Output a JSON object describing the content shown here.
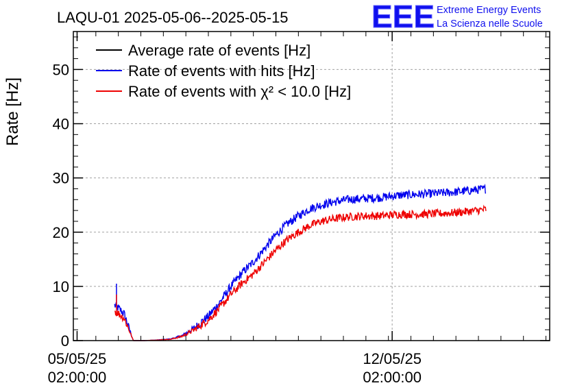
{
  "chart_data": {
    "type": "line",
    "title": "LAQU-01 2025-05-06--2025-05-15",
    "ylabel": "Rate [Hz]",
    "xlabel": "",
    "ylim": [
      0,
      57
    ],
    "yticks": [
      0,
      10,
      20,
      30,
      40,
      50
    ],
    "xlim": [
      "2025-05-05 00:00:00",
      "2025-05-15 14:00:00"
    ],
    "xticks": [
      {
        "x": "2025-05-05 02:00:00",
        "date": "05/05/25",
        "time": "02:00:00"
      },
      {
        "x": "2025-05-12 02:00:00",
        "date": "12/05/25",
        "time": "02:00:00"
      }
    ],
    "grid": true,
    "legend_position": "top-left",
    "logo": {
      "mark": "EEE",
      "line1": "Extreme Energy Events",
      "line2": "La Scienza nelle Scuole"
    },
    "series": [
      {
        "name": "Average rate of events [Hz]",
        "color": "#000000",
        "noise": 0,
        "points": []
      },
      {
        "name": "Rate of events with hits [Hz]",
        "color": "#0000ee",
        "noise": 0.8,
        "points": [
          [
            "2025-05-05 22:00",
            6.5
          ],
          [
            "2025-05-06 00:00",
            6.0
          ],
          [
            "2025-05-06 03:00",
            5.0
          ],
          [
            "2025-05-06 05:00",
            3.0
          ],
          [
            "2025-05-06 08:00",
            0.0
          ],
          [
            "2025-05-06 14:00",
            0.0
          ],
          [
            "2025-05-06 20:00",
            0.1
          ],
          [
            "2025-05-07 04:00",
            0.3
          ],
          [
            "2025-05-07 10:00",
            0.9
          ],
          [
            "2025-05-07 16:00",
            2.2
          ],
          [
            "2025-05-08 00:00",
            4.5
          ],
          [
            "2025-05-08 06:00",
            7.0
          ],
          [
            "2025-05-08 12:00",
            10.0
          ],
          [
            "2025-05-08 18:00",
            12.5
          ],
          [
            "2025-05-09 00:00",
            14.5
          ],
          [
            "2025-05-09 06:00",
            17.0
          ],
          [
            "2025-05-09 12:00",
            19.5
          ],
          [
            "2025-05-09 18:00",
            21.5
          ],
          [
            "2025-05-10 00:00",
            23.0
          ],
          [
            "2025-05-10 06:00",
            24.3
          ],
          [
            "2025-05-10 12:00",
            25.0
          ],
          [
            "2025-05-10 18:00",
            25.5
          ],
          [
            "2025-05-11 02:00",
            26.0
          ],
          [
            "2025-05-11 12:00",
            26.2
          ],
          [
            "2025-05-11 20:00",
            26.4
          ],
          [
            "2025-05-12 06:00",
            26.8
          ],
          [
            "2025-05-12 18:00",
            27.0
          ],
          [
            "2025-05-13 08:00",
            27.3
          ],
          [
            "2025-05-13 18:00",
            27.6
          ],
          [
            "2025-05-14 04:00",
            28.0
          ]
        ],
        "spikes": [
          [
            "2025-05-05 23:00",
            10.5
          ]
        ]
      },
      {
        "name": "Rate of events with χ² < 10.0 [Hz]",
        "color": "#ee0000",
        "noise": 0.75,
        "points": [
          [
            "2025-05-05 22:00",
            5.5
          ],
          [
            "2025-05-06 00:00",
            5.0
          ],
          [
            "2025-05-06 03:00",
            4.2
          ],
          [
            "2025-05-06 05:00",
            2.6
          ],
          [
            "2025-05-06 08:00",
            0.0
          ],
          [
            "2025-05-06 14:00",
            0.0
          ],
          [
            "2025-05-06 20:00",
            0.1
          ],
          [
            "2025-05-07 04:00",
            0.25
          ],
          [
            "2025-05-07 10:00",
            0.8
          ],
          [
            "2025-05-07 16:00",
            1.9
          ],
          [
            "2025-05-08 00:00",
            3.8
          ],
          [
            "2025-05-08 06:00",
            6.0
          ],
          [
            "2025-05-08 12:00",
            8.5
          ],
          [
            "2025-05-08 18:00",
            10.6
          ],
          [
            "2025-05-09 00:00",
            12.3
          ],
          [
            "2025-05-09 06:00",
            14.5
          ],
          [
            "2025-05-09 12:00",
            16.7
          ],
          [
            "2025-05-09 18:00",
            18.6
          ],
          [
            "2025-05-10 00:00",
            20.0
          ],
          [
            "2025-05-10 06:00",
            21.2
          ],
          [
            "2025-05-10 12:00",
            22.0
          ],
          [
            "2025-05-10 18:00",
            22.4
          ],
          [
            "2025-05-11 02:00",
            22.8
          ],
          [
            "2025-05-11 12:00",
            23.0
          ],
          [
            "2025-05-11 20:00",
            23.0
          ],
          [
            "2025-05-12 06:00",
            23.3
          ],
          [
            "2025-05-12 18:00",
            23.3
          ],
          [
            "2025-05-13 08:00",
            23.5
          ],
          [
            "2025-05-13 18:00",
            23.8
          ],
          [
            "2025-05-14 04:00",
            24.2
          ]
        ],
        "spikes": [
          [
            "2025-05-05 23:00",
            8.5
          ]
        ]
      }
    ]
  }
}
